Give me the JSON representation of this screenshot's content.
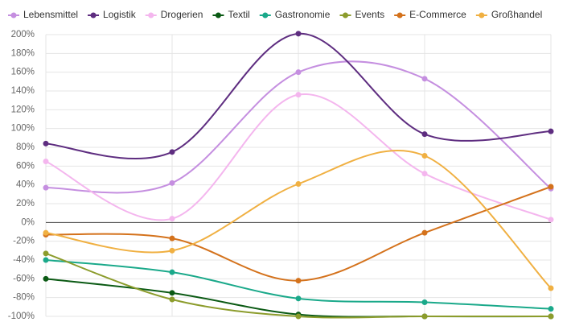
{
  "chart_data": {
    "type": "line",
    "categories": [
      null,
      null,
      null,
      null,
      null
    ],
    "series": [
      {
        "name": "Lebensmittel",
        "color": "#c58fe0",
        "values": [
          37,
          42,
          160,
          153,
          36
        ]
      },
      {
        "name": "Logistik",
        "color": "#5e2d80",
        "values": [
          84,
          75,
          201,
          94,
          97
        ]
      },
      {
        "name": "Drogerien",
        "color": "#f4b6ee",
        "values": [
          65,
          4,
          136,
          52,
          3
        ]
      },
      {
        "name": "Textil",
        "color": "#0b5a14",
        "values": [
          -60,
          -75,
          -98,
          -100,
          -100
        ]
      },
      {
        "name": "Gastronomie",
        "color": "#1aa98a",
        "values": [
          -40,
          -53,
          -81,
          -85,
          -92
        ]
      },
      {
        "name": "Events",
        "color": "#8c9c2c",
        "values": [
          -33,
          -82,
          -100,
          -100,
          -100
        ]
      },
      {
        "name": "E-Commerce",
        "color": "#d4721c",
        "values": [
          -13,
          -17,
          -62,
          -11,
          38
        ]
      },
      {
        "name": "Großhandel",
        "color": "#f0b042",
        "values": [
          -11,
          -30,
          41,
          71,
          -70
        ]
      }
    ],
    "ylim": [
      -100,
      200
    ],
    "yticks": [
      {
        "value": -100,
        "label": "-100%"
      },
      {
        "value": -80,
        "label": "-80%"
      },
      {
        "value": -60,
        "label": "-60%"
      },
      {
        "value": -40,
        "label": "-40%"
      },
      {
        "value": -20,
        "label": "-20%"
      },
      {
        "value": 0,
        "label": "0%"
      },
      {
        "value": 20,
        "label": "20%"
      },
      {
        "value": 40,
        "label": "40%"
      },
      {
        "value": 60,
        "label": "60%"
      },
      {
        "value": 80,
        "label": "80%"
      },
      {
        "value": 100,
        "label": "100%"
      },
      {
        "value": 120,
        "label": "120%"
      },
      {
        "value": 140,
        "label": "140%"
      },
      {
        "value": 160,
        "label": "160%"
      },
      {
        "value": 180,
        "label": "180%"
      },
      {
        "value": 200,
        "label": "200%"
      }
    ],
    "grid": true,
    "legend": "top"
  }
}
